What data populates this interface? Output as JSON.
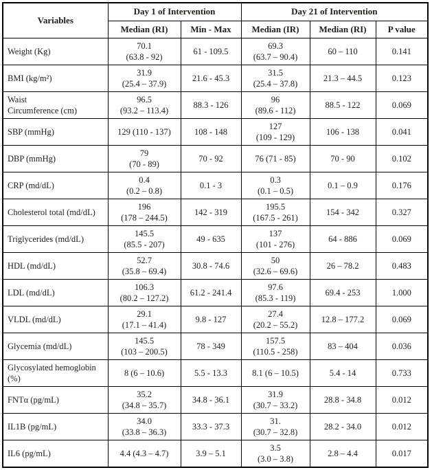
{
  "table": {
    "header": {
      "variables": "Variables",
      "day1_group": "Day 1 of Intervention",
      "day21_group": "Day 21 of Intervention",
      "day1_median": "Median (RI)",
      "day1_minmax": "Min - Max",
      "day21_median_ir": "Median (IR)",
      "day21_median_ri": "Median (RI)",
      "p_value": "P value"
    },
    "rows": [
      {
        "variable": "Weight (Kg)",
        "day1_median": "70.1\n(63.8 - 92)",
        "day1_minmax": "61 - 109.5",
        "day21_median_ir": "69.3\n(63.7 – 90.4)",
        "day21_median_ri": "60 – 110",
        "p_value": "0.141"
      },
      {
        "variable": "BMI (kg/m²)",
        "day1_median": "31.9\n(25.4 – 37.9)",
        "day1_minmax": "21.6 - 45.3",
        "day21_median_ir": "31.5\n(25.4 – 37.8)",
        "day21_median_ri": "21.3 – 44.5",
        "p_value": "0.123"
      },
      {
        "variable": "Waist\nCircumference (cm)",
        "day1_median": "96.5\n(93.2 – 113.4)",
        "day1_minmax": "88.3 - 126",
        "day21_median_ir": "96\n(89.6 - 112)",
        "day21_median_ri": "88.5 - 122",
        "p_value": "0.069"
      },
      {
        "variable": "SBP (mmHg)",
        "day1_median": "129 (110 - 137)",
        "day1_minmax": "108 - 148",
        "day21_median_ir": "127\n(109 - 129)",
        "day21_median_ri": "106 - 138",
        "p_value": "0.041"
      },
      {
        "variable": "DBP (mmHg)",
        "day1_median": "79\n(70 - 89)",
        "day1_minmax": "70 - 92",
        "day21_median_ir": "76 (71 - 85)",
        "day21_median_ri": "70 - 90",
        "p_value": "0.102"
      },
      {
        "variable": "CRP (md/dL)",
        "day1_median": "0.4\n(0.2 – 0.8)",
        "day1_minmax": "0.1 - 3",
        "day21_median_ir": "0.3\n(0.1 – 0.5)",
        "day21_median_ri": "0.1 – 0.9",
        "p_value": "0.176"
      },
      {
        "variable": "Cholesterol total (md/dL)",
        "day1_median": "196\n(178 – 244.5)",
        "day1_minmax": "142 - 319",
        "day21_median_ir": "195.5\n(167.5 - 261)",
        "day21_median_ri": "154 - 342",
        "p_value": "0.327"
      },
      {
        "variable": "Triglycerides (md/dL)",
        "day1_median": "145.5\n(85.5 - 207)",
        "day1_minmax": "49 - 635",
        "day21_median_ir": "137\n(101 - 276)",
        "day21_median_ri": "64 - 886",
        "p_value": "0.069"
      },
      {
        "variable": "HDL (md/dL)",
        "day1_median": "52.7\n(35.8 – 69.4)",
        "day1_minmax": "30.8 - 74.6",
        "day21_median_ir": "50\n(32.6 – 69.6)",
        "day21_median_ri": "26 – 78.2",
        "p_value": "0.483"
      },
      {
        "variable": "LDL (md/dL)",
        "day1_median": "106.3\n(80.2 – 127.2)",
        "day1_minmax": "61.2 - 241.4",
        "day21_median_ir": "97.6\n(85.3 - 119)",
        "day21_median_ri": "69.4 - 253",
        "p_value": "1.000"
      },
      {
        "variable": "VLDL (md/dL)",
        "day1_median": "29.1\n(17.1 – 41.4)",
        "day1_minmax": "9.8 - 127",
        "day21_median_ir": "27.4\n(20.2 – 55.2)",
        "day21_median_ri": "12.8 – 177.2",
        "p_value": "0.069"
      },
      {
        "variable": "Glycemia (md/dL)",
        "day1_median": "145.5\n(103 – 200.5)",
        "day1_minmax": "78 - 349",
        "day21_median_ir": "157.5\n(110.5 - 258)",
        "day21_median_ri": "83 – 404",
        "p_value": "0.036"
      },
      {
        "variable": "Glycosylated hemoglobin (%)",
        "day1_median": "8 (6 – 10.6)",
        "day1_minmax": "5.5 - 13.3",
        "day21_median_ir": "8.1 (6 – 10.5)",
        "day21_median_ri": "5.4 - 14",
        "p_value": "0.733"
      },
      {
        "variable": "FNTα (pg/mL)",
        "day1_median": "35.2\n(34.8 – 35.7)",
        "day1_minmax": "34.8 - 36.1",
        "day21_median_ir": "31.9\n(30.7 – 33.2)",
        "day21_median_ri": "28.8 - 34.8",
        "p_value": "0.012"
      },
      {
        "variable": "IL1B (pg/mL)",
        "day1_median": "34.0\n(33.8 – 36.3)",
        "day1_minmax": "33.3 - 37.3",
        "day21_median_ir": "31.\n(30.7 – 32.8)",
        "day21_median_ri": "28.2 - 34.0",
        "p_value": "0.012"
      },
      {
        "variable": "IL6 (pg/mL)",
        "day1_median": "4.4 (4.3 – 4.7)",
        "day1_minmax": "3.9 – 5.1",
        "day21_median_ir": "3.5\n(3.0 – 3.8)",
        "day21_median_ri": "2.8 – 4.4",
        "p_value": "0.017"
      }
    ]
  }
}
